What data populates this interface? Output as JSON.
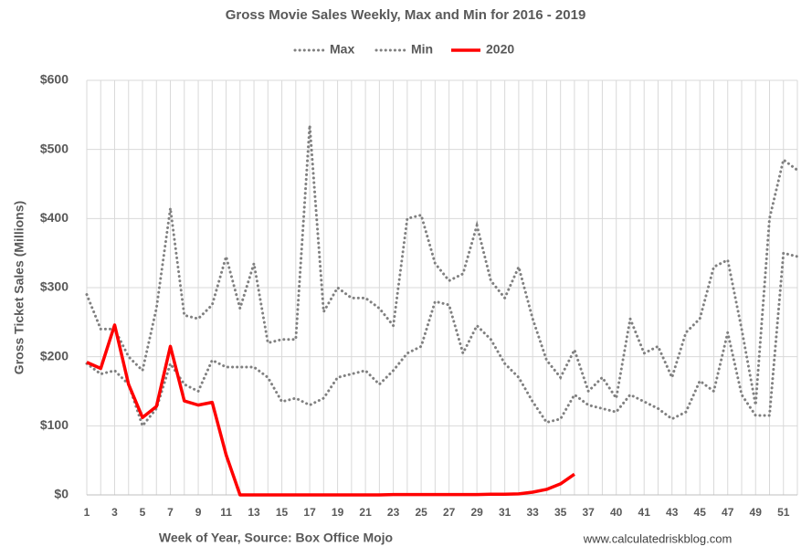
{
  "chart_data": {
    "type": "line",
    "title": "Gross Movie Sales Weekly, Max and Min for 2016 - 2019",
    "x_label": "Week of Year, Source: Box Office Mojo",
    "y_label": "Gross Ticket Sales (Millions)",
    "source": "www.calculatedriskblog.com",
    "legend": "top",
    "grid": true,
    "categories": [
      "1",
      null,
      "3",
      null,
      "5",
      null,
      "7",
      null,
      "9",
      null,
      "11",
      null,
      "13",
      null,
      "15",
      null,
      "17",
      null,
      "19",
      null,
      "21",
      null,
      "23",
      null,
      "25",
      null,
      "27",
      null,
      "29",
      null,
      "31",
      null,
      "33",
      null,
      "35",
      null,
      "37",
      null,
      "40",
      null,
      "41",
      null,
      "43",
      null,
      "45",
      null,
      "47",
      null,
      "49",
      null,
      "51",
      null
    ],
    "ylim": [
      0,
      600
    ],
    "yticks": [
      {
        "value": 0,
        "label": "$0"
      },
      {
        "value": 100,
        "label": "$100"
      },
      {
        "value": 200,
        "label": "$200"
      },
      {
        "value": 300,
        "label": "$300"
      },
      {
        "value": 400,
        "label": "$400"
      },
      {
        "value": 500,
        "label": "$500"
      },
      {
        "value": 600,
        "label": "$600"
      }
    ],
    "series": [
      {
        "name": "Max",
        "color": "#808080",
        "style": "dotted",
        "values": [
          290,
          240,
          240,
          200,
          180,
          270,
          415,
          260,
          255,
          275,
          345,
          270,
          335,
          220,
          225,
          225,
          535,
          265,
          300,
          285,
          285,
          270,
          245,
          400,
          405,
          335,
          310,
          320,
          390,
          310,
          285,
          330,
          255,
          195,
          170,
          210,
          150,
          170,
          140,
          255,
          205,
          215,
          170,
          235,
          255,
          330,
          340,
          240,
          130,
          400,
          485,
          470
        ]
      },
      {
        "name": "Min",
        "color": "#808080",
        "style": "dotted",
        "values": [
          190,
          175,
          180,
          160,
          100,
          125,
          190,
          160,
          150,
          195,
          185,
          185,
          185,
          170,
          135,
          140,
          130,
          140,
          170,
          175,
          180,
          160,
          180,
          205,
          215,
          280,
          275,
          205,
          245,
          225,
          190,
          170,
          135,
          105,
          110,
          145,
          130,
          125,
          120,
          145,
          135,
          125,
          110,
          120,
          165,
          150,
          235,
          145,
          115,
          115,
          350,
          345
        ]
      },
      {
        "name": "2020",
        "color": "#ff0000",
        "style": "solid",
        "values": [
          192,
          183,
          246,
          160,
          112,
          128,
          215,
          136,
          130,
          134,
          58,
          0,
          0,
          0,
          0,
          0,
          0,
          0,
          0,
          0,
          0,
          0,
          0.5,
          0.5,
          0.5,
          0.5,
          0.5,
          0.5,
          0.5,
          1,
          1,
          1.5,
          4,
          8,
          16,
          30,
          null,
          null,
          null,
          null,
          null,
          null,
          null,
          null,
          null,
          null,
          null,
          null,
          null,
          null,
          null,
          null
        ]
      }
    ]
  }
}
